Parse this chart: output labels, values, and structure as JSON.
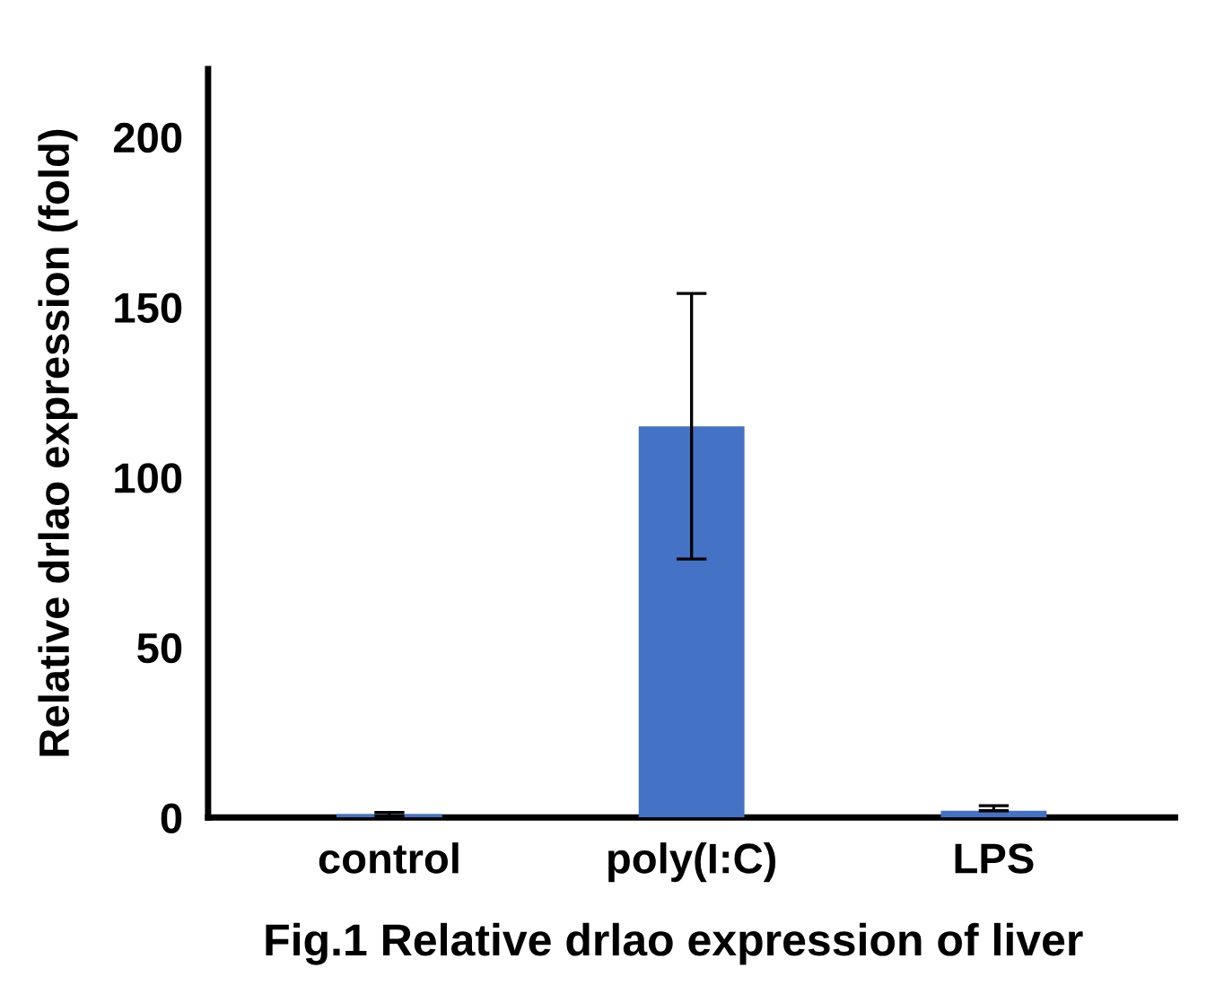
{
  "chart_data": {
    "type": "bar",
    "title": "Fig.1 Relative drlao expression of liver",
    "ylabel": "Relative drlao expression (fold)",
    "categories": [
      "control",
      "poly(I:C)",
      "LPS"
    ],
    "values": [
      1,
      115,
      2
    ],
    "errors": [
      0.5,
      39,
      [
        2,
        3.5
      ]
    ],
    "color": "#4472c4",
    "ylim": [
      0,
      220
    ],
    "yticks": [
      0,
      50,
      100,
      150,
      200
    ]
  }
}
